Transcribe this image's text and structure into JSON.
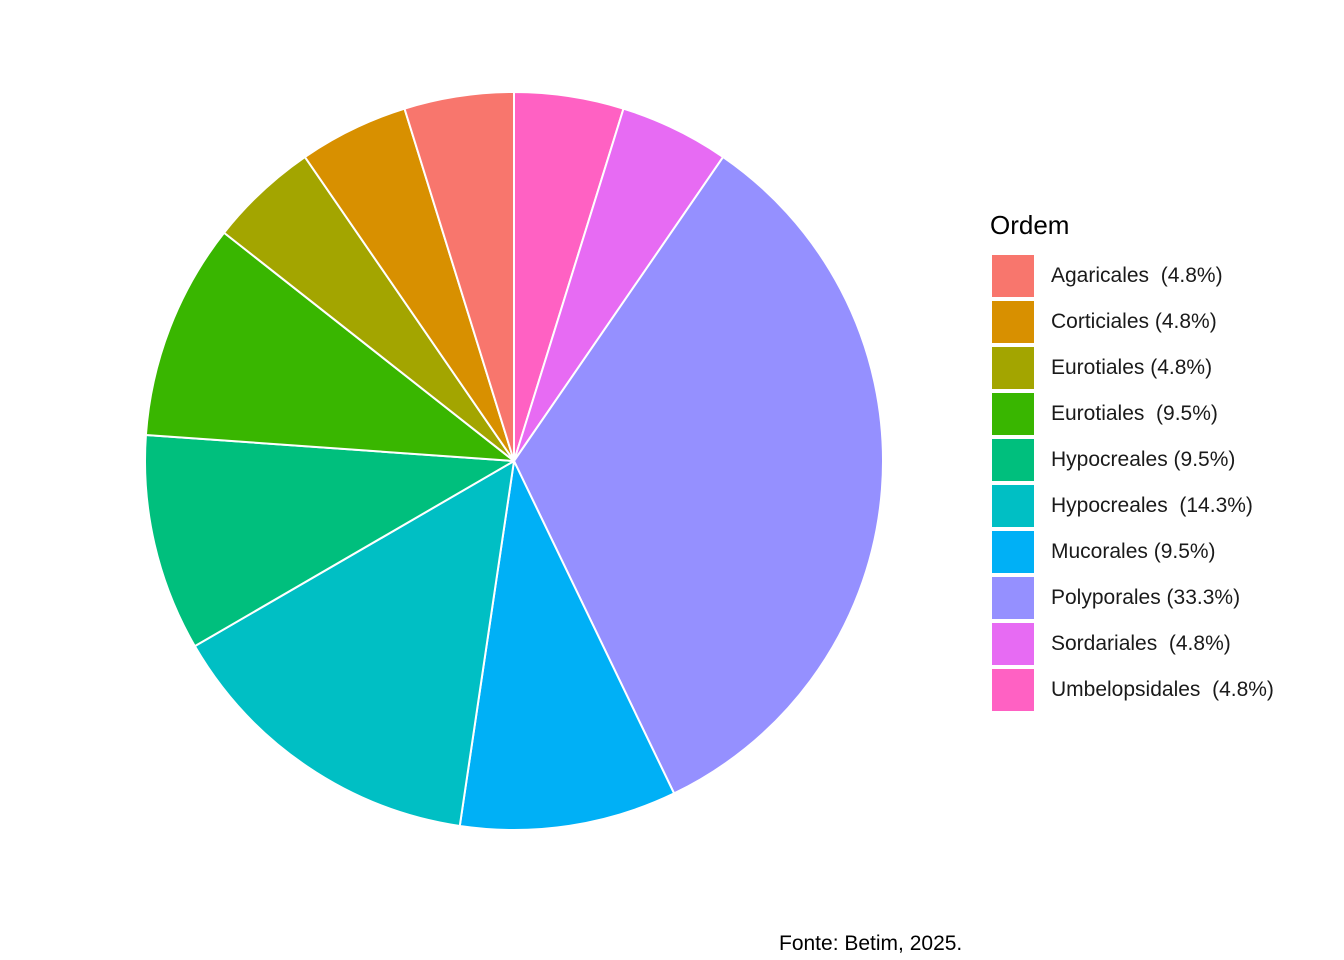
{
  "chart_data": {
    "type": "pie",
    "legend_title": "Ordem",
    "legend_position": "right",
    "caption": "Fonte: Betim, 2025.",
    "direction": "clockwise",
    "start": "top",
    "slices": [
      {
        "label": "Umbelopsidales  (4.8%)",
        "value": 4.8,
        "color": "#FF61C3"
      },
      {
        "label": "Sordariales  (4.8%)",
        "value": 4.8,
        "color": "#E76BF3"
      },
      {
        "label": "Polyporales (33.3%)",
        "value": 33.3,
        "color": "#9590FF"
      },
      {
        "label": "Mucorales (9.5%)",
        "value": 9.5,
        "color": "#00B0F6"
      },
      {
        "label": "Hypocreales  (14.3%)",
        "value": 14.3,
        "color": "#00BFC4"
      },
      {
        "label": "Hypocreales (9.5%)",
        "value": 9.5,
        "color": "#00BF7D"
      },
      {
        "label": "Eurotiales  (9.5%)",
        "value": 9.5,
        "color": "#39B600"
      },
      {
        "label": "Eurotiales (4.8%)",
        "value": 4.8,
        "color": "#A3A500"
      },
      {
        "label": "Corticiales (4.8%)",
        "value": 4.8,
        "color": "#D89000"
      },
      {
        "label": "Agaricales  (4.8%)",
        "value": 4.8,
        "color": "#F8766D"
      }
    ],
    "legend_order": [
      "Agaricales  (4.8%)",
      "Corticiales (4.8%)",
      "Eurotiales (4.8%)",
      "Eurotiales  (9.5%)",
      "Hypocreales (9.5%)",
      "Hypocreales  (14.3%)",
      "Mucorales (9.5%)",
      "Polyporales (33.3%)",
      "Sordariales  (4.8%)",
      "Umbelopsidales  (4.8%)"
    ]
  }
}
